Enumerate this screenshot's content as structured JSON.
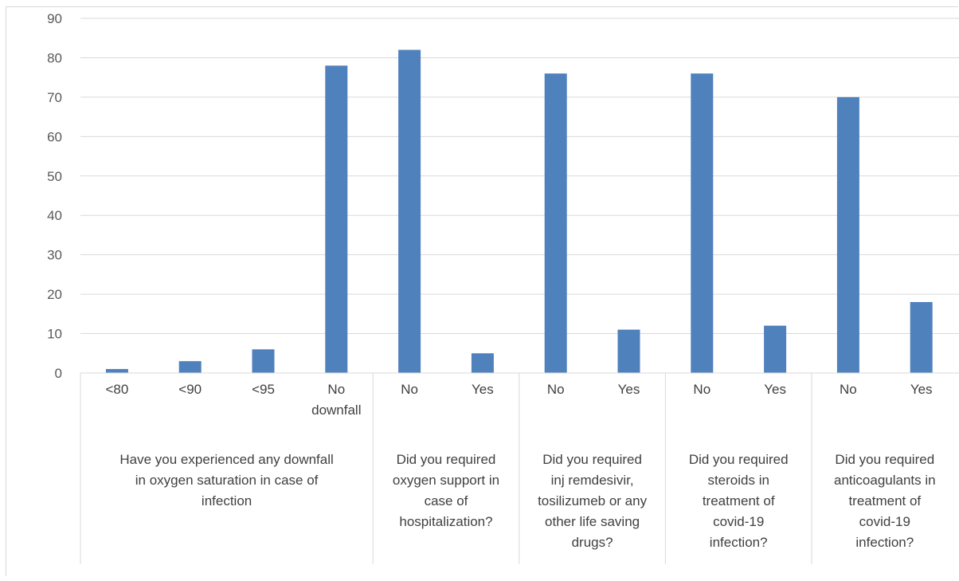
{
  "chart_data": {
    "type": "bar",
    "ylim": [
      0,
      90
    ],
    "y_ticks": [
      0,
      10,
      20,
      30,
      40,
      50,
      60,
      70,
      80,
      90
    ],
    "grid": true,
    "color": "#4f81bd",
    "groups": [
      {
        "label_lines": [
          "Have you experienced any downfall",
          "in oxygen saturation in case of",
          "infection"
        ],
        "categories": [
          {
            "label_lines": [
              "<80"
            ],
            "value": 1
          },
          {
            "label_lines": [
              "<90"
            ],
            "value": 3
          },
          {
            "label_lines": [
              "<95"
            ],
            "value": 6
          },
          {
            "label_lines": [
              "No",
              "downfall"
            ],
            "value": 78
          }
        ]
      },
      {
        "label_lines": [
          "Did you required",
          "oxygen support in",
          "case of",
          "hospitalization?"
        ],
        "categories": [
          {
            "label_lines": [
              "No"
            ],
            "value": 82
          },
          {
            "label_lines": [
              "Yes"
            ],
            "value": 5
          }
        ]
      },
      {
        "label_lines": [
          "Did you required",
          "inj remdesivir,",
          "tosilizumeb or any",
          "other life saving",
          "drugs?"
        ],
        "categories": [
          {
            "label_lines": [
              "No"
            ],
            "value": 76
          },
          {
            "label_lines": [
              "Yes"
            ],
            "value": 11
          }
        ]
      },
      {
        "label_lines": [
          "Did you required",
          "steroids in",
          "treatment of",
          "covid-19",
          "infection?"
        ],
        "categories": [
          {
            "label_lines": [
              "No"
            ],
            "value": 76
          },
          {
            "label_lines": [
              "Yes"
            ],
            "value": 12
          }
        ]
      },
      {
        "label_lines": [
          "Did you required",
          "anticoagulants in",
          "treatment of",
          "covid-19",
          "infection?"
        ],
        "categories": [
          {
            "label_lines": [
              "No"
            ],
            "value": 70
          },
          {
            "label_lines": [
              "Yes"
            ],
            "value": 18
          }
        ]
      }
    ]
  }
}
